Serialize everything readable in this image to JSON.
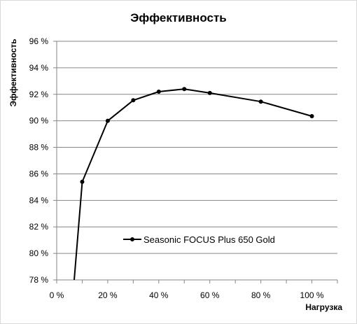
{
  "chart_data": {
    "type": "line",
    "title": "Эффективность",
    "xlabel": "Нагрузка",
    "ylabel": "Эффективность",
    "xlim": [
      0,
      110
    ],
    "ylim": [
      78,
      96
    ],
    "x_ticks": [
      0,
      20,
      40,
      60,
      80,
      100
    ],
    "x_tick_labels": [
      "0 %",
      "20 %",
      "40 %",
      "60 %",
      "80 %",
      "100 %"
    ],
    "y_ticks": [
      78,
      80,
      82,
      84,
      86,
      88,
      90,
      92,
      94,
      96
    ],
    "y_tick_labels": [
      "78 %",
      "80 %",
      "82 %",
      "84 %",
      "86 %",
      "88 %",
      "90 %",
      "92 %",
      "94 %",
      "96 %"
    ],
    "grid": "horizontal",
    "legend_position": "inside-bottom-center",
    "series": [
      {
        "name": "Seasonic FOCUS Plus 650 Gold",
        "color": "#000000",
        "x": [
          6,
          10,
          20,
          30,
          40,
          50,
          60,
          80,
          100
        ],
        "y": [
          76.0,
          85.4,
          90.0,
          91.55,
          92.2,
          92.4,
          92.1,
          91.45,
          90.35
        ],
        "markers": [
          false,
          true,
          true,
          true,
          true,
          true,
          true,
          true,
          true
        ]
      }
    ]
  }
}
